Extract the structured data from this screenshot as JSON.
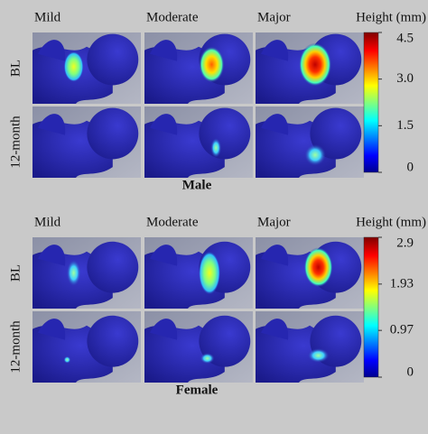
{
  "panels": [
    {
      "columns": [
        "Mild",
        "Moderate",
        "Major"
      ],
      "rows": [
        "BL",
        "12-month"
      ],
      "colorbar_title": "Height (mm)",
      "clim": [
        0,
        4.5
      ],
      "colorbar_ticks": [
        4.5,
        {
          "value": 3,
          "label": "3.0"
        },
        1.5,
        0
      ],
      "label": "Male"
    },
    {
      "columns": [
        "Mild",
        "Moderate",
        "Major"
      ],
      "rows": [
        "BL",
        "12-month"
      ],
      "colorbar_title": "Height (mm)",
      "clim": [
        0,
        2.9
      ],
      "colorbar_ticks": [
        2.9,
        1.93,
        0.97,
        0
      ],
      "label": "Female"
    }
  ]
}
